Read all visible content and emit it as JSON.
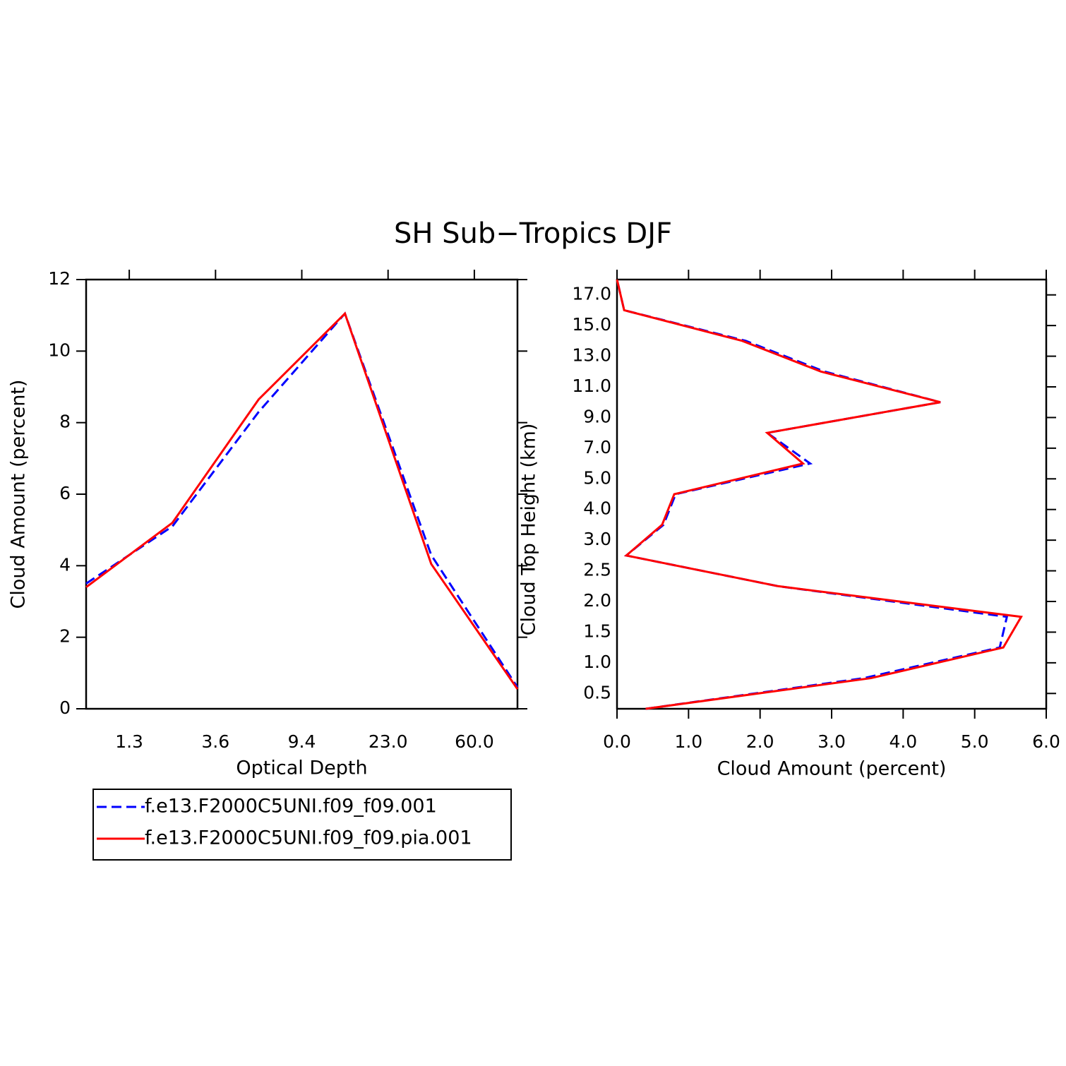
{
  "title": "SH Sub−Tropics DJF",
  "chart_data": [
    {
      "type": "line",
      "orientation": "vertical",
      "xlabel": "Optical Depth",
      "ylabel": "Cloud Amount (percent)",
      "xtick_labels": [
        "1.3",
        "3.6",
        "9.4",
        "23.0",
        "60.0"
      ],
      "ylim": [
        0,
        12
      ],
      "yticks": [
        0,
        2,
        4,
        6,
        8,
        10,
        12
      ],
      "series": [
        {
          "name": "f.e13.F2000C5UNI.f09_f09.001",
          "color": "#0000ff",
          "dash": true,
          "values": [
            3.5,
            5.1,
            8.3,
            11.05,
            4.3,
            0.6
          ]
        },
        {
          "name": "f.e13.F2000C5UNI.f09_f09.pia.001",
          "color": "#ff0000",
          "dash": false,
          "values": [
            3.4,
            5.2,
            8.65,
            11.05,
            4.05,
            0.55
          ]
        }
      ]
    },
    {
      "type": "line",
      "orientation": "horizontal",
      "xlabel": "Cloud Amount (percent)",
      "ylabel": "Cloud Top Height (km)",
      "ytick_labels": [
        "0.5",
        "1.0",
        "1.5",
        "2.0",
        "2.5",
        "3.0",
        "4.0",
        "5.0",
        "7.0",
        "9.0",
        "11.0",
        "13.0",
        "15.0",
        "17.0"
      ],
      "xlim": [
        0,
        6
      ],
      "xticks": [
        {
          "value": 0,
          "label": "0.0"
        },
        {
          "value": 1,
          "label": "1.0"
        },
        {
          "value": 2,
          "label": "2.0"
        },
        {
          "value": 3,
          "label": "3.0"
        },
        {
          "value": 4,
          "label": "4.0"
        },
        {
          "value": 5,
          "label": "5.0"
        },
        {
          "value": 6,
          "label": "6.0"
        }
      ],
      "series": [
        {
          "color": "#0000ff",
          "dash": true,
          "values": [
            0.4,
            3.45,
            5.35,
            5.45,
            2.25,
            0.13,
            0.65,
            0.82,
            2.7,
            2.1,
            4.52,
            2.9,
            1.8,
            0.1,
            0.0
          ]
        },
        {
          "color": "#ff0000",
          "dash": false,
          "values": [
            0.4,
            3.55,
            5.4,
            5.65,
            2.25,
            0.13,
            0.63,
            0.8,
            2.6,
            2.1,
            4.52,
            2.85,
            1.75,
            0.1,
            0.0
          ]
        }
      ]
    }
  ]
}
